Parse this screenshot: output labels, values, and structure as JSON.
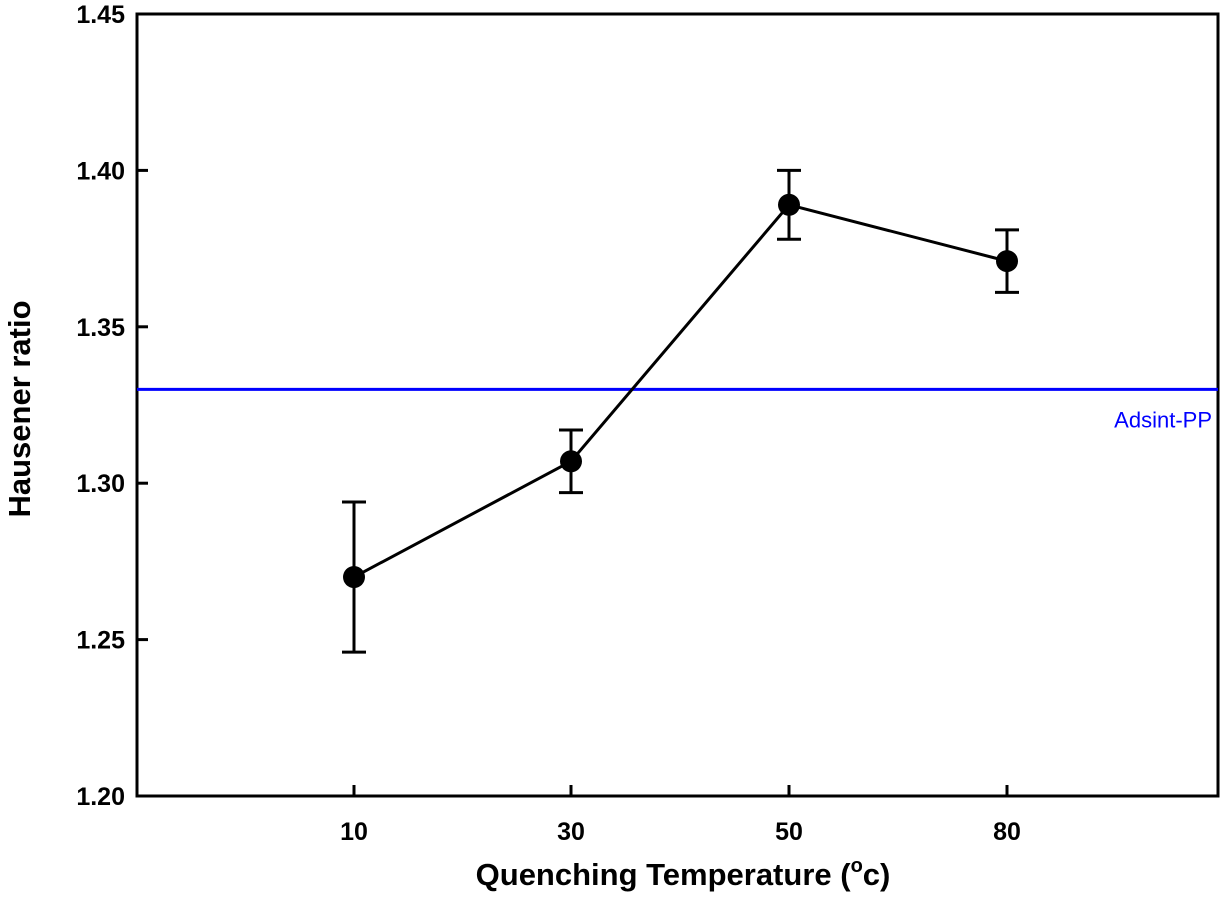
{
  "chart_data": {
    "type": "line",
    "title": "",
    "xlabel_main": "Quenching Temperature (",
    "xlabel_sup": "o",
    "xlabel_tail": "c)",
    "ylabel": "Hausener ratio",
    "x_ticks": [
      "10",
      "30",
      "50",
      "80"
    ],
    "y_ticks": [
      "1.20",
      "1.25",
      "1.30",
      "1.35",
      "1.40",
      "1.45"
    ],
    "ylim": [
      1.2,
      1.45
    ],
    "grid": false,
    "series": [
      {
        "categories": [
          "10",
          "30",
          "50",
          "80"
        ],
        "values": [
          1.27,
          1.307,
          1.389,
          1.371
        ],
        "error": [
          0.024,
          0.01,
          0.011,
          0.01
        ],
        "color": "#000000",
        "marker": "filled-circle"
      }
    ],
    "reference_line": {
      "label": "Adsint-PP",
      "value": 1.33,
      "color": "#0000ff"
    }
  }
}
